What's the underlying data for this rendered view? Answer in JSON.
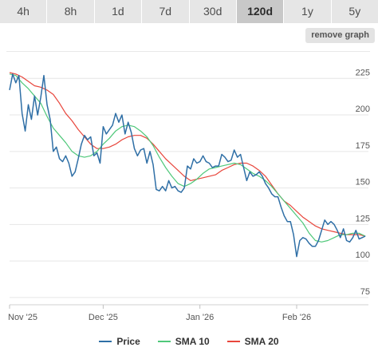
{
  "range_tabs": [
    {
      "label": "4h",
      "active": false
    },
    {
      "label": "8h",
      "active": false
    },
    {
      "label": "1d",
      "active": false
    },
    {
      "label": "7d",
      "active": false
    },
    {
      "label": "30d",
      "active": false
    },
    {
      "label": "120d",
      "active": true
    },
    {
      "label": "1y",
      "active": false
    },
    {
      "label": "5y",
      "active": false
    }
  ],
  "remove_graph_label": "remove graph",
  "chart_data": {
    "type": "line",
    "x_labels": [
      "Nov '25",
      "Dec '25",
      "Jan '26",
      "Feb '26"
    ],
    "x_label_days": [
      0,
      30,
      61,
      92
    ],
    "x_days_total": 115,
    "y_ticks": [
      75,
      100,
      125,
      150,
      175,
      200,
      225
    ],
    "ylim": [
      70,
      235
    ],
    "grid": "horizontal",
    "legend_position": "bottom",
    "series": [
      {
        "name": "Price",
        "color": "#2f6fa6",
        "values": [
          [
            0,
            217
          ],
          [
            1,
            228
          ],
          [
            2,
            222
          ],
          [
            3,
            227
          ],
          [
            4,
            201
          ],
          [
            5,
            189
          ],
          [
            6,
            207
          ],
          [
            7,
            197
          ],
          [
            8,
            213
          ],
          [
            9,
            200
          ],
          [
            10,
            212
          ],
          [
            11,
            227
          ],
          [
            12,
            207
          ],
          [
            13,
            197
          ],
          [
            14,
            175
          ],
          [
            15,
            178
          ],
          [
            16,
            170
          ],
          [
            17,
            168
          ],
          [
            18,
            172
          ],
          [
            19,
            167
          ],
          [
            20,
            158
          ],
          [
            21,
            161
          ],
          [
            22,
            170
          ],
          [
            23,
            180
          ],
          [
            24,
            186
          ],
          [
            25,
            183
          ],
          [
            26,
            185
          ],
          [
            27,
            172
          ],
          [
            28,
            174
          ],
          [
            29,
            167
          ],
          [
            30,
            192
          ],
          [
            31,
            187
          ],
          [
            32,
            190
          ],
          [
            33,
            193
          ],
          [
            34,
            201
          ],
          [
            35,
            195
          ],
          [
            36,
            200
          ],
          [
            37,
            187
          ],
          [
            38,
            195
          ],
          [
            39,
            188
          ],
          [
            40,
            177
          ],
          [
            41,
            172
          ],
          [
            42,
            176
          ],
          [
            43,
            177
          ],
          [
            44,
            167
          ],
          [
            45,
            175
          ],
          [
            46,
            166
          ],
          [
            47,
            149
          ],
          [
            48,
            148
          ],
          [
            49,
            151
          ],
          [
            50,
            148
          ],
          [
            51,
            155
          ],
          [
            52,
            150
          ],
          [
            53,
            151
          ],
          [
            54,
            148
          ],
          [
            55,
            147
          ],
          [
            56,
            150
          ],
          [
            57,
            165
          ],
          [
            58,
            163
          ],
          [
            59,
            170
          ],
          [
            60,
            167
          ],
          [
            61,
            168
          ],
          [
            62,
            172
          ],
          [
            63,
            168
          ],
          [
            64,
            167
          ],
          [
            65,
            164
          ],
          [
            66,
            165
          ],
          [
            67,
            165
          ],
          [
            68,
            173
          ],
          [
            69,
            171
          ],
          [
            70,
            168
          ],
          [
            71,
            169
          ],
          [
            72,
            176
          ],
          [
            73,
            171
          ],
          [
            74,
            173
          ],
          [
            75,
            164
          ],
          [
            76,
            155
          ],
          [
            77,
            161
          ],
          [
            78,
            158
          ],
          [
            79,
            159
          ],
          [
            80,
            161
          ],
          [
            81,
            158
          ],
          [
            82,
            153
          ],
          [
            83,
            150
          ],
          [
            84,
            146
          ],
          [
            85,
            144
          ],
          [
            86,
            144
          ],
          [
            87,
            137
          ],
          [
            88,
            131
          ],
          [
            89,
            127
          ],
          [
            90,
            127
          ],
          [
            91,
            118
          ],
          [
            92,
            103
          ],
          [
            93,
            114
          ],
          [
            94,
            116
          ],
          [
            95,
            115
          ],
          [
            96,
            112
          ],
          [
            97,
            110
          ],
          [
            98,
            110
          ],
          [
            99,
            114
          ],
          [
            100,
            121
          ],
          [
            101,
            128
          ],
          [
            102,
            125
          ],
          [
            103,
            127
          ],
          [
            104,
            125
          ],
          [
            105,
            121
          ],
          [
            106,
            116
          ],
          [
            107,
            122
          ],
          [
            108,
            114
          ],
          [
            109,
            113
          ],
          [
            110,
            116
          ],
          [
            111,
            121
          ],
          [
            112,
            115
          ],
          [
            113,
            116
          ],
          [
            114,
            117
          ]
        ]
      },
      {
        "name": "SMA 10",
        "color": "#4fc87a",
        "values": [
          [
            0,
            228
          ],
          [
            2,
            227
          ],
          [
            4,
            222
          ],
          [
            6,
            218
          ],
          [
            8,
            213
          ],
          [
            10,
            208
          ],
          [
            12,
            199
          ],
          [
            14,
            191
          ],
          [
            16,
            186
          ],
          [
            18,
            181
          ],
          [
            20,
            175
          ],
          [
            22,
            172
          ],
          [
            24,
            171
          ],
          [
            26,
            172
          ],
          [
            28,
            175
          ],
          [
            30,
            180
          ],
          [
            32,
            184
          ],
          [
            34,
            189
          ],
          [
            36,
            192
          ],
          [
            38,
            193
          ],
          [
            40,
            192
          ],
          [
            42,
            189
          ],
          [
            44,
            185
          ],
          [
            46,
            179
          ],
          [
            48,
            171
          ],
          [
            50,
            164
          ],
          [
            52,
            158
          ],
          [
            54,
            153
          ],
          [
            56,
            151
          ],
          [
            58,
            153
          ],
          [
            60,
            156
          ],
          [
            62,
            160
          ],
          [
            64,
            163
          ],
          [
            66,
            164
          ],
          [
            68,
            165
          ],
          [
            70,
            166
          ],
          [
            72,
            167
          ],
          [
            74,
            166
          ],
          [
            76,
            163
          ],
          [
            78,
            160
          ],
          [
            80,
            158
          ],
          [
            82,
            155
          ],
          [
            84,
            151
          ],
          [
            86,
            146
          ],
          [
            88,
            141
          ],
          [
            90,
            136
          ],
          [
            92,
            131
          ],
          [
            94,
            126
          ],
          [
            96,
            119
          ],
          [
            98,
            114
          ],
          [
            100,
            113
          ],
          [
            102,
            114
          ],
          [
            104,
            116
          ],
          [
            106,
            118
          ],
          [
            108,
            118
          ],
          [
            110,
            119
          ],
          [
            112,
            119
          ],
          [
            114,
            117
          ]
        ]
      },
      {
        "name": "SMA 20",
        "color": "#e8463c",
        "values": [
          [
            0,
            229
          ],
          [
            2,
            228
          ],
          [
            4,
            226
          ],
          [
            6,
            223
          ],
          [
            8,
            220
          ],
          [
            10,
            219
          ],
          [
            12,
            217
          ],
          [
            14,
            214
          ],
          [
            16,
            208
          ],
          [
            18,
            201
          ],
          [
            20,
            196
          ],
          [
            22,
            190
          ],
          [
            24,
            185
          ],
          [
            26,
            180
          ],
          [
            28,
            177
          ],
          [
            30,
            177
          ],
          [
            32,
            178
          ],
          [
            34,
            180
          ],
          [
            36,
            183
          ],
          [
            38,
            185
          ],
          [
            40,
            186
          ],
          [
            42,
            186
          ],
          [
            44,
            184
          ],
          [
            46,
            180
          ],
          [
            48,
            175
          ],
          [
            50,
            170
          ],
          [
            52,
            166
          ],
          [
            54,
            162
          ],
          [
            56,
            158
          ],
          [
            58,
            155
          ],
          [
            60,
            156
          ],
          [
            62,
            157
          ],
          [
            64,
            158
          ],
          [
            66,
            159
          ],
          [
            68,
            162
          ],
          [
            70,
            164
          ],
          [
            72,
            166
          ],
          [
            74,
            167
          ],
          [
            76,
            167
          ],
          [
            78,
            165
          ],
          [
            80,
            162
          ],
          [
            82,
            158
          ],
          [
            84,
            152
          ],
          [
            86,
            146
          ],
          [
            88,
            141
          ],
          [
            90,
            138
          ],
          [
            92,
            134
          ],
          [
            94,
            130
          ],
          [
            96,
            127
          ],
          [
            98,
            124
          ],
          [
            100,
            122
          ],
          [
            102,
            121
          ],
          [
            104,
            120
          ],
          [
            106,
            119
          ],
          [
            108,
            118
          ],
          [
            110,
            118
          ],
          [
            112,
            118
          ],
          [
            114,
            117
          ]
        ]
      }
    ]
  }
}
